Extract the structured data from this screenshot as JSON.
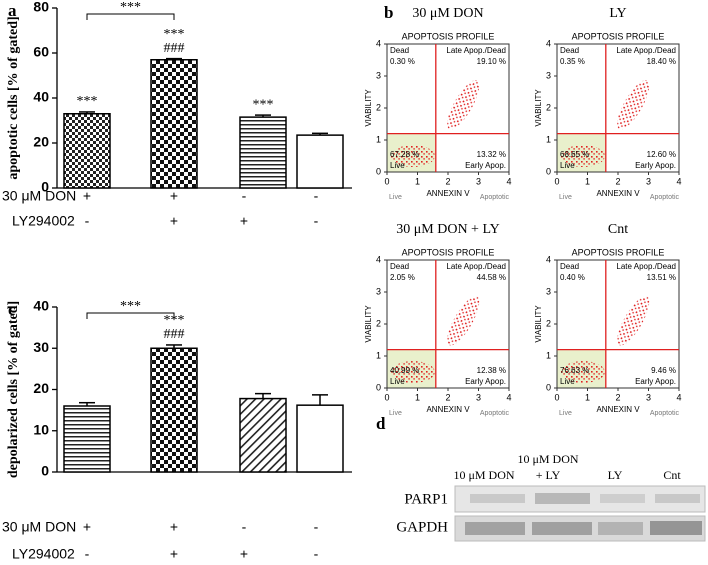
{
  "chart_data": [
    {
      "type": "bar",
      "panel": "a",
      "ylabel": "apoptotic cells [% of gated]",
      "values": [
        33,
        57,
        31.5,
        23.5
      ],
      "errors": [
        0.8,
        0.5,
        0.9,
        0.8
      ],
      "patterns": [
        "checker-small",
        "checker",
        "hlines",
        "none"
      ],
      "ylim": [
        0,
        80
      ],
      "yticks": [
        0,
        20,
        40,
        60,
        80
      ],
      "annotations": [
        [
          "***"
        ],
        [
          "***",
          "###"
        ],
        [
          "***"
        ],
        []
      ],
      "bracket": {
        "from": 0,
        "to": 1,
        "label": "***"
      },
      "treatments": [
        {
          "name": "30 μM DON",
          "signs": [
            "+",
            "+",
            "-",
            "-"
          ]
        },
        {
          "name": "LY294002",
          "signs": [
            "-",
            "+",
            "+",
            "-"
          ]
        }
      ]
    },
    {
      "type": "bar",
      "panel": "c",
      "ylabel": "depolarized cells [% of gated]",
      "values": [
        16,
        30,
        17.8,
        16.2
      ],
      "errors": [
        0.8,
        0.8,
        1.2,
        2.5
      ],
      "patterns": [
        "hlines",
        "checker",
        "diag",
        "none"
      ],
      "ylim": [
        0,
        40
      ],
      "yticks": [
        0,
        10,
        20,
        30,
        40
      ],
      "annotations": [
        [],
        [
          "***",
          "###"
        ],
        [],
        []
      ],
      "bracket": {
        "from": 0,
        "to": 1,
        "label": "***"
      },
      "treatments": [
        {
          "name": "30 μM DON",
          "signs": [
            "+",
            "+",
            "-",
            "-"
          ]
        },
        {
          "name": "LY294002",
          "signs": [
            "-",
            "+",
            "+",
            "-"
          ]
        }
      ]
    },
    {
      "type": "scatter",
      "panel": "b",
      "title": "30 μM DON",
      "header": "APOPTOSIS PROFILE",
      "xlabel": "ANNEXIN V",
      "ylabel": "VIABILITY",
      "xlim": [
        0,
        4
      ],
      "ylim": [
        0,
        4
      ],
      "xticks": [
        0,
        1,
        2,
        3,
        4
      ],
      "yticks": [
        0,
        1,
        2,
        3,
        4
      ],
      "gate": {
        "x": 1.6,
        "y": 1.2
      },
      "color": "#e02020",
      "quadrants": {
        "top_left": [
          "Dead",
          "0.30 %"
        ],
        "top_right": [
          "Late Apop./Dead",
          "19.10 %"
        ],
        "bottom_left": [
          "67.28 %",
          "Live"
        ],
        "bottom_right": [
          "13.32 %",
          "Early Apop."
        ]
      },
      "x_end_labels": [
        "Live",
        "Apoptotic"
      ]
    },
    {
      "type": "scatter",
      "title": "LY",
      "header": "APOPTOSIS PROFILE",
      "xlabel": "ANNEXIN V",
      "ylabel": "VIABILITY",
      "xlim": [
        0,
        4
      ],
      "ylim": [
        0,
        4
      ],
      "xticks": [
        0,
        1,
        2,
        3,
        4
      ],
      "yticks": [
        0,
        1,
        2,
        3,
        4
      ],
      "gate": {
        "x": 1.6,
        "y": 1.2
      },
      "color": "#e02020",
      "quadrants": {
        "top_left": [
          "Dead",
          "0.35 %"
        ],
        "top_right": [
          "Late Apop./Dead",
          "18.40 %"
        ],
        "bottom_left": [
          "68.65 %",
          "Live"
        ],
        "bottom_right": [
          "12.60 %",
          "Early Apop."
        ]
      },
      "x_end_labels": [
        "Live",
        "Apoptotic"
      ]
    },
    {
      "type": "scatter",
      "title": "30 μM DON + LY",
      "header": "APOPTOSIS PROFILE",
      "xlabel": "ANNEXIN V",
      "ylabel": "VIABILITY",
      "xlim": [
        0,
        4
      ],
      "ylim": [
        0,
        4
      ],
      "xticks": [
        0,
        1,
        2,
        3,
        4
      ],
      "yticks": [
        0,
        1,
        2,
        3,
        4
      ],
      "gate": {
        "x": 1.6,
        "y": 1.2
      },
      "color": "#e02020",
      "quadrants": {
        "top_left": [
          "Dead",
          "2.05 %"
        ],
        "top_right": [
          "Late Apop./Dead",
          "44.58 %"
        ],
        "bottom_left": [
          "40.99 %",
          "Live"
        ],
        "bottom_right": [
          "12.38 %",
          "Early Apop."
        ]
      },
      "x_end_labels": [
        "Live",
        "Apoptotic"
      ]
    },
    {
      "type": "scatter",
      "title": "Cnt",
      "header": "APOPTOSIS PROFILE",
      "xlabel": "ANNEXIN V",
      "ylabel": "VIABILITY",
      "xlim": [
        0,
        4
      ],
      "ylim": [
        0,
        4
      ],
      "xticks": [
        0,
        1,
        2,
        3,
        4
      ],
      "yticks": [
        0,
        1,
        2,
        3,
        4
      ],
      "gate": {
        "x": 1.6,
        "y": 1.2
      },
      "color": "#e02020",
      "quadrants": {
        "top_left": [
          "Dead",
          "0.40 %"
        ],
        "top_right": [
          "Late Apop./Dead",
          "13.51 %"
        ],
        "bottom_left": [
          "76.63 %",
          "Live"
        ],
        "bottom_right": [
          "9.46 %",
          "Early Apop."
        ]
      },
      "x_end_labels": [
        "Live",
        "Apoptotic"
      ]
    }
  ],
  "blot": {
    "panel": "d",
    "lanes": [
      [
        "10 μM DON"
      ],
      [
        "10 μM DON",
        "+ LY"
      ],
      [
        "LY"
      ],
      [
        "Cnt"
      ]
    ],
    "rows": [
      "PARP1",
      "GAPDH"
    ]
  }
}
